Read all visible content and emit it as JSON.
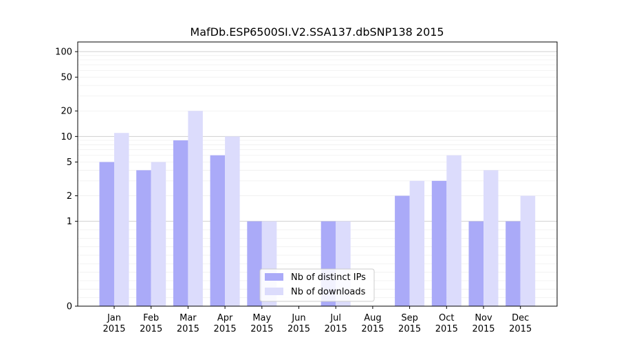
{
  "chart_data": {
    "type": "bar",
    "title": "MafDb.ESP6500SI.V2.SSA137.dbSNP138 2015",
    "xlabel": "",
    "ylabel": "",
    "yscale": "symlog",
    "ylim": [
      0,
      130
    ],
    "yticks": [
      0,
      1,
      2,
      5,
      10,
      20,
      50,
      100
    ],
    "grid": true,
    "legend_position": "bottom-center",
    "categories": [
      "Jan\n2015",
      "Feb\n2015",
      "Mar\n2015",
      "Apr\n2015",
      "May\n2015",
      "Jun\n2015",
      "Jul\n2015",
      "Aug\n2015",
      "Sep\n2015",
      "Oct\n2015",
      "Nov\n2015",
      "Dec\n2015"
    ],
    "series": [
      {
        "name": "Nb of distinct IPs",
        "color": "#aaaaf8",
        "values": [
          5,
          4,
          9,
          6,
          1,
          0,
          1,
          0,
          2,
          3,
          1,
          1
        ]
      },
      {
        "name": "Nb of downloads",
        "color": "#dcdcfc",
        "values": [
          11,
          5,
          20,
          10,
          1,
          0,
          1,
          0,
          3,
          6,
          4,
          2
        ]
      }
    ]
  }
}
